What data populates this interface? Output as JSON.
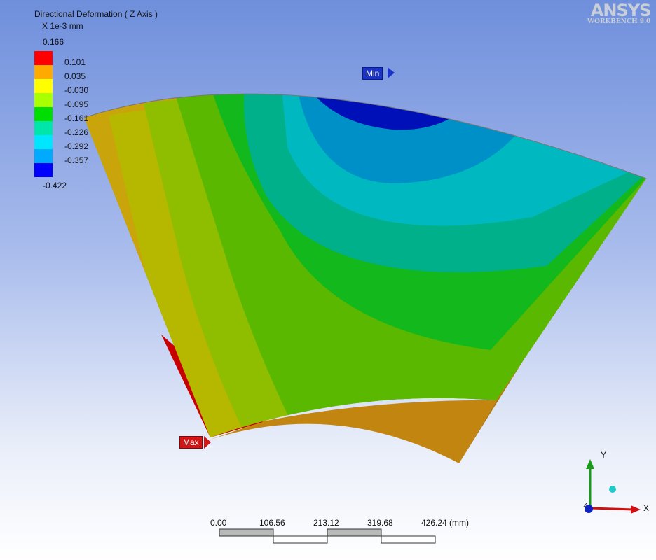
{
  "legend": {
    "title": "Directional Deformation ( Z Axis )",
    "units": "X 1e-3 mm",
    "max_value": "0.166",
    "min_value": "-0.422",
    "labels": [
      "0.101",
      "0.035",
      "-0.030",
      "-0.095",
      "-0.161",
      "-0.226",
      "-0.292",
      "-0.357"
    ],
    "colors": [
      "#ff0000",
      "#ffaa00",
      "#ffff00",
      "#aaff00",
      "#00dd00",
      "#00e6aa",
      "#00e6ff",
      "#00aaff",
      "#0000ff"
    ]
  },
  "logo": {
    "brand": "ANSYS",
    "sub": "WORKBENCH 9.0"
  },
  "probes": {
    "min_label": "Min",
    "max_label": "Max"
  },
  "scale_bar": {
    "ticks": [
      "0.00",
      "106.56",
      "213.12",
      "319.68",
      "426.24 (mm)"
    ]
  },
  "triad": {
    "x_label": "X",
    "y_label": "Y",
    "z_label": "Z"
  },
  "colors": {
    "model_side": "#c98a10",
    "accent_min": "#1a33c8",
    "accent_max": "#d31515"
  }
}
